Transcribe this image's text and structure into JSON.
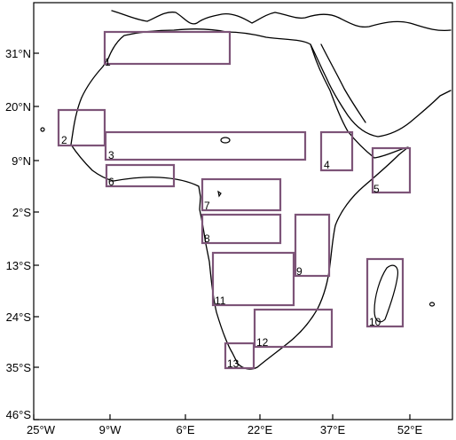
{
  "map": {
    "lon_ticks": [
      "25°W",
      "9°W",
      "6°E",
      "22°E",
      "37°E",
      "52°E"
    ],
    "lat_ticks": [
      "31°N",
      "20°N",
      "9°N",
      "2°S",
      "13°S",
      "24°S",
      "35°S",
      "46°S"
    ],
    "box_color": "#7d5478",
    "regions": [
      {
        "label": "1"
      },
      {
        "label": "2"
      },
      {
        "label": "3"
      },
      {
        "label": "4"
      },
      {
        "label": "5"
      },
      {
        "label": "6"
      },
      {
        "label": "7"
      },
      {
        "label": "8"
      },
      {
        "label": "9"
      },
      {
        "label": "10"
      },
      {
        "label": "11"
      },
      {
        "label": "12"
      },
      {
        "label": "13"
      }
    ]
  }
}
